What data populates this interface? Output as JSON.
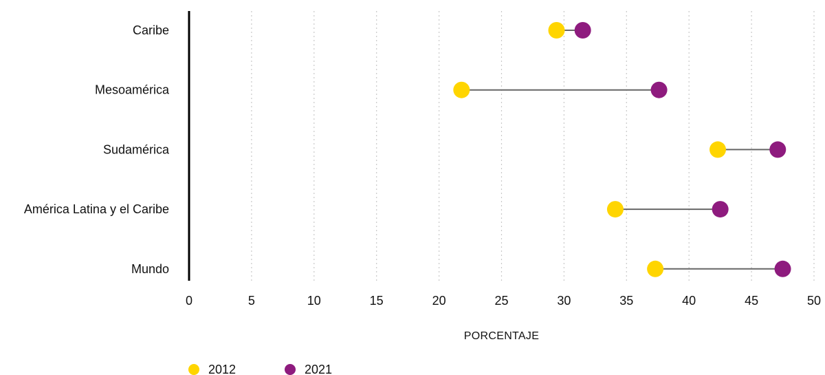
{
  "chart_data": {
    "type": "dumbbell",
    "categories": [
      "Caribe",
      "Mesoamérica",
      "Sudamérica",
      "América Latina y el Caribe",
      "Mundo"
    ],
    "series": [
      {
        "name": "2012",
        "color": "#FFD500",
        "values": [
          29.4,
          21.8,
          42.3,
          34.1,
          37.3
        ]
      },
      {
        "name": "2021",
        "color": "#8E1B7E",
        "values": [
          31.5,
          37.6,
          47.1,
          42.5,
          47.5
        ]
      }
    ],
    "xlabel": "PORCENTAJE",
    "xlim": [
      0,
      50
    ],
    "xticks": [
      0,
      5,
      10,
      15,
      20,
      25,
      30,
      35,
      40,
      45,
      50
    ],
    "grid": "vertical dotted",
    "connector_color": "#666666",
    "axis_color": "#000000",
    "grid_color": "#c8c8c8",
    "legend_position": "bottom-left"
  }
}
